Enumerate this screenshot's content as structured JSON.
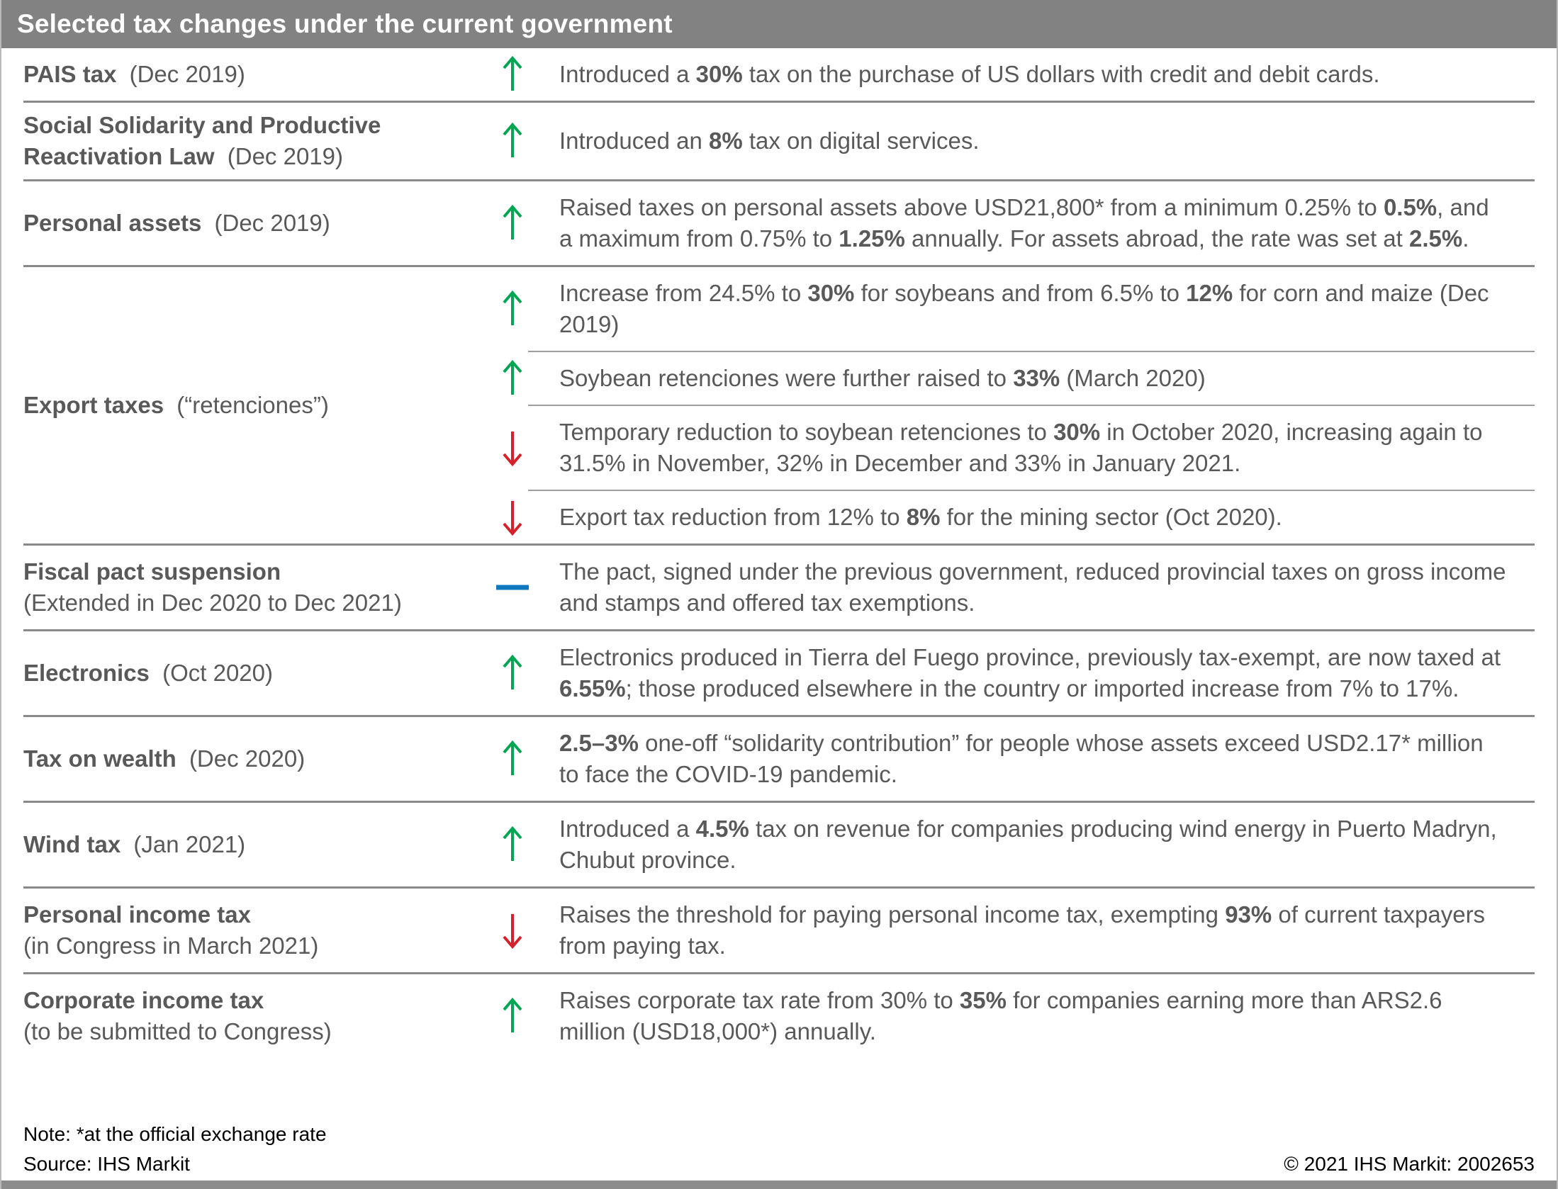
{
  "header": {
    "title": "Selected tax changes under the current government"
  },
  "colors": {
    "header_bg": "#828282",
    "body_text": "#595959",
    "footer_text": "#000000",
    "up_arrow": "#00A651",
    "down_arrow": "#D7212A",
    "neutral_dash": "#0F78BE",
    "row_divider": "#898989",
    "sub_divider": "#9E9E9E"
  },
  "icons": {
    "up": "up-arrow-icon",
    "down": "down-arrow-icon",
    "neutral": "dash-icon"
  },
  "rows": [
    {
      "name": "PAIS tax",
      "note": "(Dec 2019)",
      "note_position": "inline",
      "entries": [
        {
          "direction": "up",
          "segments": [
            {
              "t": "Introduced a "
            },
            {
              "t": "30%",
              "b": true
            },
            {
              "t": " tax on the purchase of US dollars with credit and debit cards."
            }
          ]
        }
      ]
    },
    {
      "name": "Social Solidarity and Productive Reactivation Law",
      "note": "(Dec 2019)",
      "note_position": "inline",
      "entries": [
        {
          "direction": "up",
          "segments": [
            {
              "t": "Introduced an "
            },
            {
              "t": "8%",
              "b": true
            },
            {
              "t": " tax on digital services."
            }
          ]
        }
      ]
    },
    {
      "name": "Personal assets",
      "note": "(Dec 2019)",
      "note_position": "inline",
      "entries": [
        {
          "direction": "up",
          "segments": [
            {
              "t": "Raised taxes on personal assets above USD21,800* from a minimum 0.25% to "
            },
            {
              "t": "0.5%",
              "b": true
            },
            {
              "t": ", and a maximum from 0.75% to "
            },
            {
              "t": "1.25%",
              "b": true
            },
            {
              "t": " annually. For assets abroad, the rate was set at "
            },
            {
              "t": "2.5%",
              "b": true
            },
            {
              "t": "."
            }
          ]
        }
      ]
    },
    {
      "name": "Export taxes",
      "note": "(“retenciones”)",
      "note_position": "inline",
      "entries": [
        {
          "direction": "up",
          "segments": [
            {
              "t": "Increase from 24.5% to "
            },
            {
              "t": "30%",
              "b": true
            },
            {
              "t": " for soybeans and from 6.5% to "
            },
            {
              "t": "12%",
              "b": true
            },
            {
              "t": " for corn and maize (Dec 2019)"
            }
          ]
        },
        {
          "direction": "up",
          "segments": [
            {
              "t": "Soybean retenciones were further raised to "
            },
            {
              "t": "33%",
              "b": true
            },
            {
              "t": " (March 2020)"
            }
          ]
        },
        {
          "direction": "down",
          "segments": [
            {
              "t": "Temporary reduction to soybean retenciones to "
            },
            {
              "t": "30%",
              "b": true
            },
            {
              "t": " in October 2020, increasing again to 31.5% in November, 32% in December and 33% in January 2021."
            }
          ]
        },
        {
          "direction": "down",
          "segments": [
            {
              "t": "Export tax reduction from 12% to "
            },
            {
              "t": "8%",
              "b": true
            },
            {
              "t": " for the mining sector (Oct 2020)."
            }
          ]
        }
      ]
    },
    {
      "name": "Fiscal pact suspension",
      "note": "(Extended in Dec 2020 to Dec 2021)",
      "note_position": "newline",
      "entries": [
        {
          "direction": "neutral",
          "segments": [
            {
              "t": "The pact, signed under the previous government, reduced provincial taxes on gross income and stamps and offered tax exemptions."
            }
          ]
        }
      ]
    },
    {
      "name": "Electronics",
      "note": "(Oct 2020)",
      "note_position": "inline",
      "entries": [
        {
          "direction": "up",
          "segments": [
            {
              "t": "Electronics produced in Tierra del Fuego province, previously tax-exempt, are now taxed at "
            },
            {
              "t": "6.55%",
              "b": true
            },
            {
              "t": "; those produced elsewhere in the country or imported increase from 7% to 17%."
            }
          ]
        }
      ]
    },
    {
      "name": "Tax on wealth",
      "note": "(Dec 2020)",
      "note_position": "inline",
      "entries": [
        {
          "direction": "up",
          "segments": [
            {
              "t": "2.5–3%",
              "b": true
            },
            {
              "t": " one-off “solidarity contribution” for people whose assets exceed USD2.17* million to face the COVID-19 pandemic."
            }
          ]
        }
      ]
    },
    {
      "name": "Wind tax",
      "note": "(Jan 2021)",
      "note_position": "inline",
      "entries": [
        {
          "direction": "up",
          "segments": [
            {
              "t": "Introduced a "
            },
            {
              "t": "4.5%",
              "b": true
            },
            {
              "t": " tax on revenue for companies producing wind energy in Puerto Madryn, Chubut province."
            }
          ]
        }
      ]
    },
    {
      "name": "Personal income tax",
      "note": "(in Congress in March 2021)",
      "note_position": "newline",
      "entries": [
        {
          "direction": "down",
          "segments": [
            {
              "t": "Raises the threshold for paying personal income tax, exempting "
            },
            {
              "t": "93%",
              "b": true
            },
            {
              "t": " of current taxpayers from paying tax."
            }
          ]
        }
      ]
    },
    {
      "name": "Corporate income tax",
      "note": "(to be submitted to Congress)",
      "note_position": "newline",
      "entries": [
        {
          "direction": "up",
          "segments": [
            {
              "t": "Raises corporate tax rate from 30% to "
            },
            {
              "t": "35%",
              "b": true
            },
            {
              "t": " for companies earning more than ARS2.6 million (USD18,000*) annually."
            }
          ]
        }
      ]
    }
  ],
  "footer": {
    "note": "Note: *at the official exchange rate",
    "source": "Source: IHS Markit",
    "copyright": "© 2021 IHS Markit: 2002653"
  }
}
